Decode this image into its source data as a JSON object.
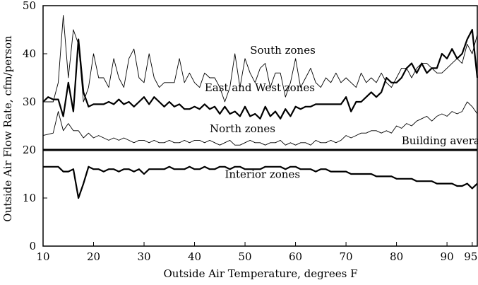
{
  "chart_data": {
    "type": "line",
    "title": "",
    "xlabel": "Outside Air Temperature, degrees F",
    "ylabel": "Outside Air Flow Rate, cfm/person",
    "xlim": [
      10,
      96
    ],
    "ylim": [
      0,
      50
    ],
    "xticks": [
      10,
      20,
      30,
      40,
      50,
      60,
      70,
      80,
      90,
      95
    ],
    "yticks": [
      0,
      10,
      20,
      30,
      40,
      50
    ],
    "grid": false,
    "series": [
      {
        "name": "South zones",
        "style": "thin",
        "x": [
          10,
          12,
          13,
          14,
          15,
          16,
          17,
          18,
          19,
          20,
          21,
          22,
          23,
          24,
          25,
          26,
          27,
          28,
          29,
          30,
          31,
          32,
          33,
          34,
          35,
          36,
          37,
          38,
          39,
          40,
          41,
          42,
          43,
          44,
          45,
          46,
          47,
          48,
          49,
          50,
          51,
          52,
          53,
          54,
          55,
          56,
          57,
          58,
          59,
          60,
          61,
          62,
          63,
          64,
          65,
          66,
          67,
          68,
          69,
          70,
          71,
          72,
          73,
          74,
          75,
          76,
          77,
          78,
          79,
          80,
          81,
          82,
          83,
          84,
          85,
          86,
          87,
          88,
          89,
          90,
          91,
          92,
          93,
          94,
          95,
          96
        ],
        "values": [
          30,
          30,
          34,
          48,
          35,
          45,
          42,
          30,
          33,
          40,
          35,
          35,
          33,
          39,
          35,
          33,
          39,
          41,
          35,
          34,
          40,
          35,
          33,
          34,
          34,
          34,
          39,
          34,
          36,
          34,
          33,
          36,
          35,
          35,
          33,
          30,
          33,
          40,
          33,
          39,
          36,
          34,
          37,
          38,
          33,
          36,
          36,
          31,
          34,
          39,
          33,
          35,
          37,
          34,
          33,
          35,
          34,
          36,
          34,
          35,
          34,
          33,
          36,
          34,
          35,
          34,
          36,
          34,
          33,
          35,
          37,
          37,
          35,
          37,
          38,
          38,
          37,
          36,
          36,
          37,
          38,
          39,
          38,
          42,
          40,
          44
        ]
      },
      {
        "name": "East and West zones",
        "style": "thick",
        "x": [
          10,
          11,
          12,
          13,
          14,
          15,
          16,
          17,
          18,
          19,
          20,
          21,
          22,
          23,
          24,
          25,
          26,
          27,
          28,
          29,
          30,
          31,
          32,
          33,
          34,
          35,
          36,
          37,
          38,
          39,
          40,
          41,
          42,
          43,
          44,
          45,
          46,
          47,
          48,
          49,
          50,
          51,
          52,
          53,
          54,
          55,
          56,
          57,
          58,
          59,
          60,
          61,
          62,
          63,
          64,
          65,
          66,
          67,
          68,
          69,
          70,
          71,
          72,
          73,
          74,
          75,
          76,
          77,
          78,
          79,
          80,
          81,
          82,
          83,
          84,
          85,
          86,
          87,
          88,
          89,
          90,
          91,
          92,
          93,
          94,
          95,
          96
        ],
        "values": [
          30,
          31,
          30.5,
          30.5,
          27,
          34,
          28,
          43,
          32,
          29,
          29.5,
          29.5,
          29.5,
          30,
          29.5,
          30.5,
          29.5,
          30,
          29,
          30,
          31,
          29.5,
          31,
          30,
          29,
          30,
          29,
          29.5,
          28.5,
          28.5,
          29,
          28.5,
          29.5,
          28.5,
          29,
          27.5,
          29,
          27.5,
          28,
          27,
          29,
          27,
          27.5,
          26.5,
          29,
          27,
          28,
          26.5,
          28.5,
          27,
          29,
          28.5,
          29,
          29,
          29.5,
          29.5,
          29.5,
          29.5,
          29.5,
          29.5,
          31,
          28,
          30,
          30,
          31,
          32,
          31,
          32,
          35,
          34,
          34,
          35,
          37,
          38,
          36,
          38,
          36,
          37,
          37,
          40,
          39,
          41,
          39,
          40,
          43,
          45,
          35
        ]
      },
      {
        "name": "North zones",
        "style": "thin",
        "x": [
          10,
          12,
          13,
          14,
          15,
          16,
          17,
          18,
          19,
          20,
          21,
          22,
          23,
          24,
          25,
          26,
          27,
          28,
          29,
          30,
          31,
          32,
          33,
          34,
          35,
          36,
          37,
          38,
          39,
          40,
          41,
          42,
          43,
          44,
          45,
          46,
          47,
          48,
          49,
          50,
          51,
          52,
          53,
          54,
          55,
          56,
          57,
          58,
          59,
          60,
          61,
          62,
          63,
          64,
          65,
          66,
          67,
          68,
          69,
          70,
          71,
          72,
          73,
          74,
          75,
          76,
          77,
          78,
          79,
          80,
          81,
          82,
          83,
          84,
          85,
          86,
          87,
          88,
          89,
          90,
          91,
          92,
          93,
          94,
          95,
          96
        ],
        "values": [
          23,
          23.5,
          28,
          24,
          25.5,
          24,
          24,
          22.5,
          23.5,
          22.5,
          23,
          22.5,
          22,
          22.5,
          22,
          22.5,
          22,
          21.5,
          22,
          22,
          21.5,
          22,
          21.5,
          21.5,
          22,
          21.5,
          21.5,
          22,
          21.5,
          22,
          22,
          21.5,
          22,
          21.5,
          21,
          21.5,
          22,
          21,
          21,
          21.5,
          22,
          21.5,
          21.5,
          21,
          21.5,
          21.5,
          22,
          21,
          21.5,
          21,
          21.5,
          21.5,
          21,
          22,
          21.5,
          21.5,
          22,
          21.5,
          22,
          23,
          22.5,
          23,
          23.5,
          23.5,
          24,
          24,
          23.5,
          24,
          23.5,
          25,
          24.5,
          25.5,
          25,
          26,
          26.5,
          27,
          26,
          27,
          27.5,
          27,
          28,
          27.5,
          28,
          30,
          29,
          27.5
        ]
      },
      {
        "name": "Building average",
        "style": "heavy",
        "x": [
          10,
          96
        ],
        "values": [
          20,
          20
        ]
      },
      {
        "name": "Interior zones",
        "style": "thick",
        "x": [
          10,
          11,
          12,
          13,
          14,
          15,
          16,
          17,
          18,
          19,
          20,
          21,
          22,
          23,
          24,
          25,
          26,
          27,
          28,
          29,
          30,
          31,
          32,
          33,
          34,
          35,
          36,
          37,
          38,
          39,
          40,
          41,
          42,
          43,
          44,
          45,
          46,
          47,
          48,
          49,
          50,
          51,
          52,
          53,
          54,
          55,
          56,
          57,
          58,
          59,
          60,
          61,
          62,
          63,
          64,
          65,
          66,
          67,
          68,
          69,
          70,
          71,
          72,
          73,
          74,
          75,
          76,
          77,
          78,
          79,
          80,
          81,
          82,
          83,
          84,
          85,
          86,
          87,
          88,
          89,
          90,
          91,
          92,
          93,
          94,
          95,
          96
        ],
        "values": [
          16.5,
          16.5,
          16.5,
          16.5,
          15.5,
          15.5,
          16,
          10,
          13,
          16.5,
          16,
          16,
          15.5,
          16,
          16,
          15.5,
          16,
          16,
          15.5,
          16,
          15,
          16,
          16,
          16,
          16,
          16.5,
          16,
          16,
          16,
          16.5,
          16,
          16,
          16.5,
          16,
          16,
          16.5,
          16.5,
          16,
          16.5,
          16.5,
          16,
          16,
          16,
          16,
          16.5,
          16.5,
          16.5,
          16.5,
          16,
          16.5,
          16.5,
          16,
          16,
          16,
          15.5,
          16,
          16,
          15.5,
          15.5,
          15.5,
          15.5,
          15,
          15,
          15,
          15,
          15,
          14.5,
          14.5,
          14.5,
          14.5,
          14,
          14,
          14,
          14,
          13.5,
          13.5,
          13.5,
          13.5,
          13,
          13,
          13,
          13,
          12.5,
          12.5,
          13,
          12,
          13
        ]
      }
    ],
    "annotations": [
      {
        "text": "South zones",
        "x": 51,
        "y": 40
      },
      {
        "text": "East and West zones",
        "x": 42,
        "y": 32.2
      },
      {
        "text": "North zones",
        "x": 43,
        "y": 23.7
      },
      {
        "text": "Building average",
        "x": 81,
        "y": 21.2
      },
      {
        "text": "Interior zones",
        "x": 46,
        "y": 14.2
      }
    ]
  }
}
